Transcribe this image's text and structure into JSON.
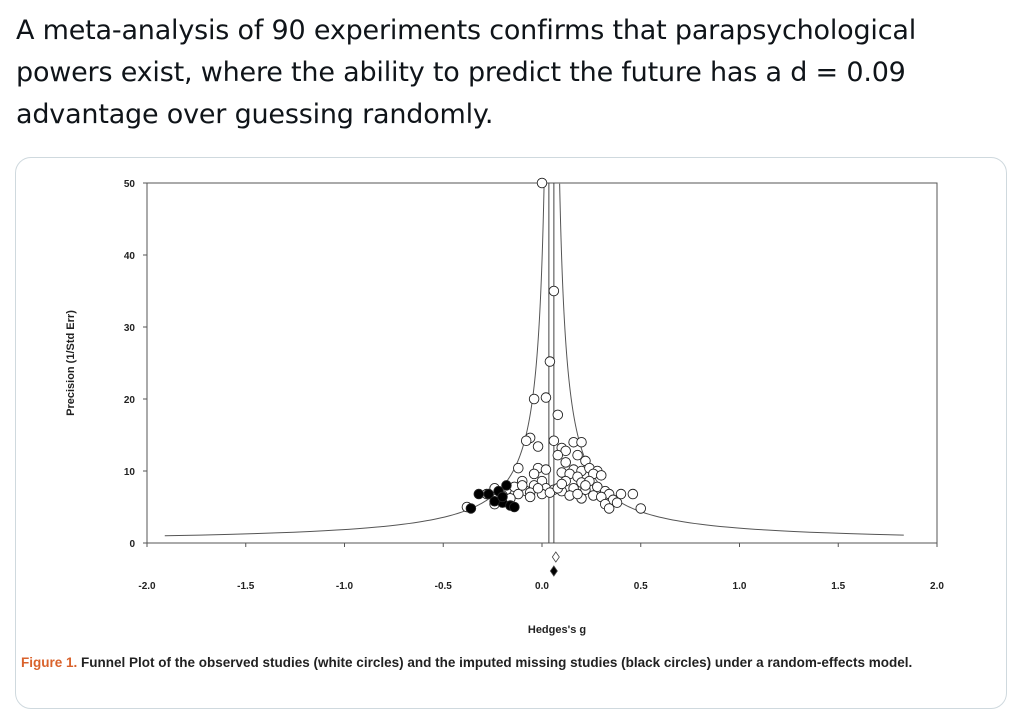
{
  "tweet": {
    "text": "A meta-analysis of 90 experiments confirms that parapsychological powers exist, where the ability to predict the future has a d = 0.09 advantage over guessing randomly."
  },
  "figure": {
    "label": "Figure 1.",
    "caption": "Funnel Plot of the observed studies (white circles) and the imputed missing studies (black circles) under a random-effects model."
  },
  "colors": {
    "caption_label": "#d9622b",
    "card_border": "#cfd9de"
  },
  "chart_data": {
    "type": "scatter",
    "xlabel": "Hedges's g",
    "ylabel": "Precision (1/Std Err)",
    "xlim": [
      -2.0,
      2.0
    ],
    "ylim": [
      0,
      50
    ],
    "xticks": [
      "-2.0",
      "-1.5",
      "-1.0",
      "-0.5",
      "0.0",
      "0.5",
      "1.0",
      "1.5",
      "2.0"
    ],
    "yticks": [
      "0",
      "10",
      "20",
      "30",
      "40",
      "50"
    ],
    "grid": false,
    "legend": "none",
    "summary_line_x": 0.05,
    "series": [
      {
        "marker": "open-circle",
        "points": [
          [
            0.0,
            50
          ],
          [
            0.06,
            35
          ],
          [
            0.04,
            25.2
          ],
          [
            0.02,
            20.2
          ],
          [
            -0.04,
            20
          ],
          [
            0.08,
            17.8
          ],
          [
            -0.06,
            14.6
          ],
          [
            -0.08,
            14.2
          ],
          [
            0.06,
            14.2
          ],
          [
            0.1,
            13.2
          ],
          [
            0.12,
            12.8
          ],
          [
            0.16,
            14
          ],
          [
            0.2,
            14
          ],
          [
            -0.02,
            13.4
          ],
          [
            0.08,
            12.2
          ],
          [
            0.18,
            12.2
          ],
          [
            0.12,
            11.2
          ],
          [
            0.22,
            11.4
          ],
          [
            -0.12,
            10.4
          ],
          [
            -0.02,
            10.4
          ],
          [
            0.02,
            10.2
          ],
          [
            0.16,
            10.2
          ],
          [
            0.2,
            10
          ],
          [
            0.24,
            10.4
          ],
          [
            0.28,
            10
          ],
          [
            -0.04,
            9.6
          ],
          [
            0.1,
            9.8
          ],
          [
            0.14,
            9.6
          ],
          [
            0.18,
            9.2
          ],
          [
            0.26,
            9.6
          ],
          [
            0.3,
            9.4
          ],
          [
            -0.1,
            8.6
          ],
          [
            0.0,
            8.6
          ],
          [
            0.12,
            8.6
          ],
          [
            0.2,
            8.4
          ],
          [
            0.24,
            8.6
          ],
          [
            -0.24,
            7.6
          ],
          [
            -0.18,
            7.4
          ],
          [
            -0.14,
            7.8
          ],
          [
            -0.08,
            7.2
          ],
          [
            -0.04,
            8
          ],
          [
            0.02,
            7.6
          ],
          [
            0.06,
            7.4
          ],
          [
            0.1,
            7.2
          ],
          [
            0.16,
            7.6
          ],
          [
            0.22,
            7.4
          ],
          [
            0.28,
            7.8
          ],
          [
            0.32,
            7.2
          ],
          [
            -0.28,
            6.8
          ],
          [
            -0.2,
            6.6
          ],
          [
            -0.12,
            6.8
          ],
          [
            -0.06,
            7
          ],
          [
            0.0,
            6.8
          ],
          [
            0.04,
            7
          ],
          [
            0.14,
            6.6
          ],
          [
            0.26,
            6.6
          ],
          [
            0.34,
            6.8
          ],
          [
            0.4,
            6.8
          ],
          [
            0.46,
            6.8
          ],
          [
            -0.16,
            6.2
          ],
          [
            0.2,
            6.2
          ],
          [
            0.3,
            6.4
          ],
          [
            0.36,
            6
          ],
          [
            -0.24,
            5.4
          ],
          [
            0.32,
            5.4
          ],
          [
            0.38,
            5.6
          ],
          [
            -0.38,
            5
          ],
          [
            0.34,
            4.8
          ],
          [
            0.5,
            4.8
          ],
          [
            -0.02,
            7.6
          ],
          [
            0.08,
            7.6
          ],
          [
            -0.1,
            8
          ],
          [
            0.1,
            8.2
          ],
          [
            -0.06,
            6.4
          ],
          [
            0.18,
            6.8
          ],
          [
            0.22,
            8
          ]
        ]
      },
      {
        "marker": "filled-circle",
        "points": [
          [
            -0.36,
            4.8
          ],
          [
            -0.32,
            6.8
          ],
          [
            -0.27,
            6.8
          ],
          [
            -0.22,
            7.2
          ],
          [
            -0.18,
            8
          ],
          [
            -0.2,
            5.6
          ],
          [
            -0.16,
            5.2
          ],
          [
            -0.24,
            5.8
          ],
          [
            -0.2,
            6.4
          ],
          [
            -0.14,
            5
          ]
        ]
      }
    ],
    "summary_markers": [
      {
        "marker": "open-diamond",
        "x": 0.07
      },
      {
        "marker": "filled-diamond",
        "x": 0.06
      }
    ]
  }
}
